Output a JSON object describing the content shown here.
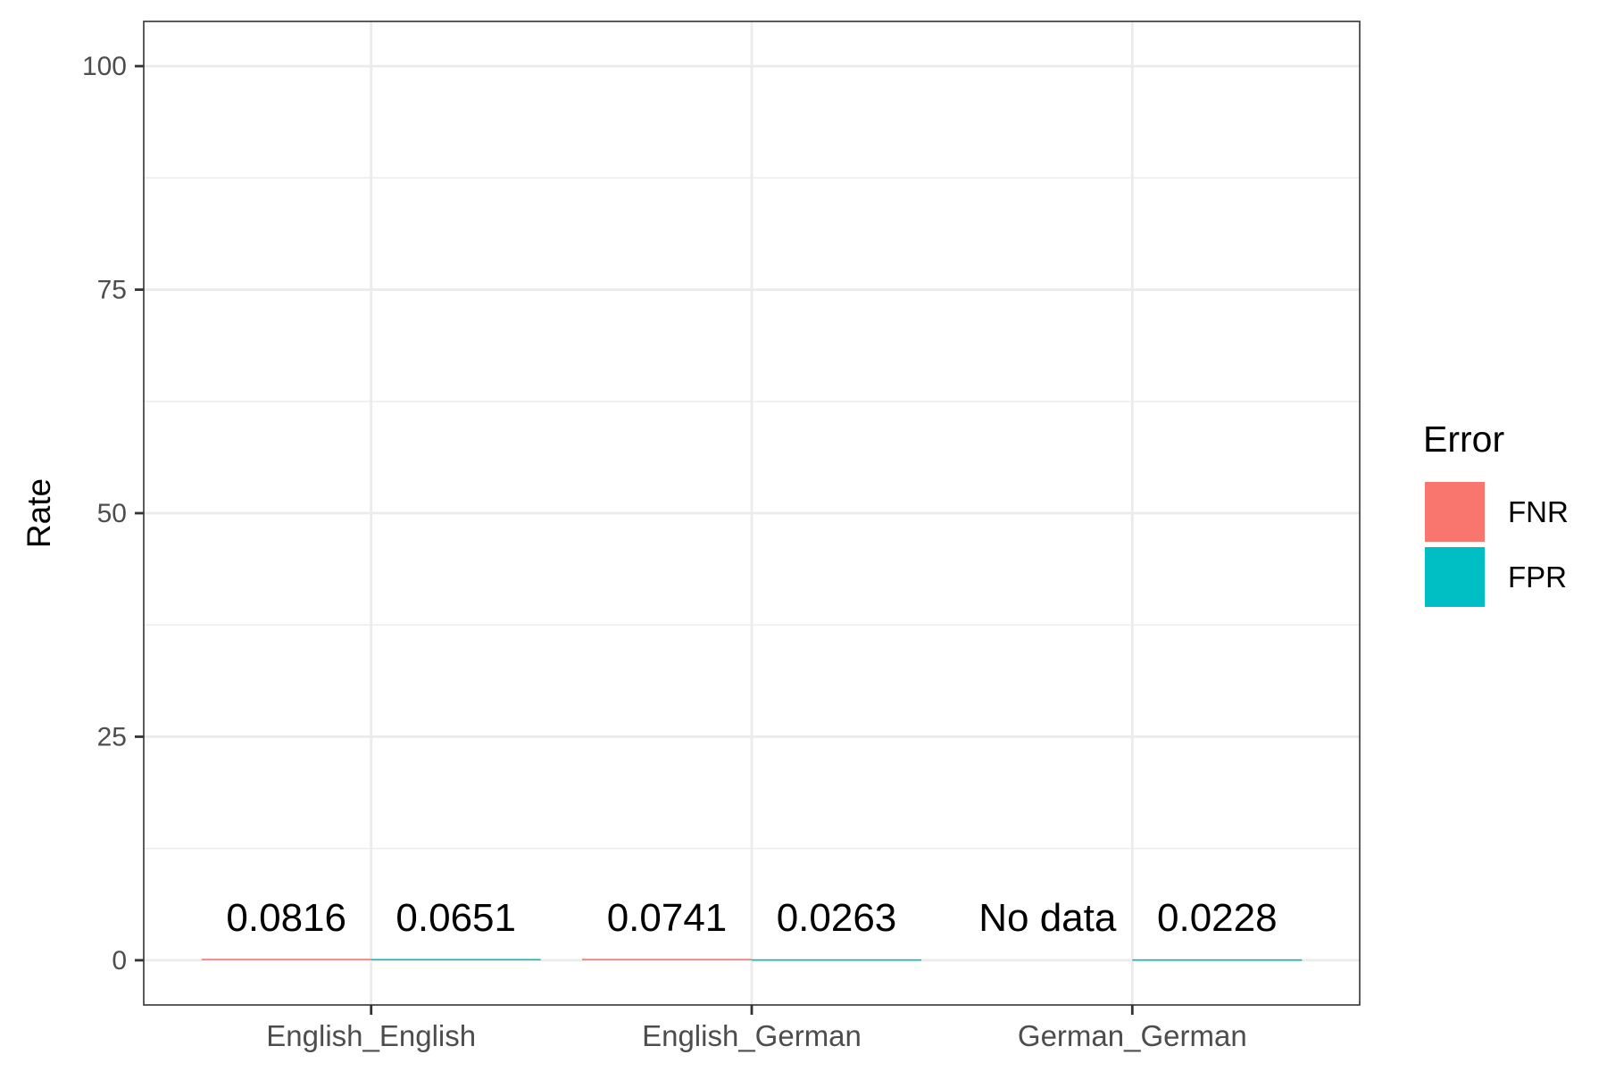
{
  "chart_data": {
    "type": "bar",
    "categories": [
      "English_English",
      "English_German",
      "German_German"
    ],
    "series": [
      {
        "name": "FNR",
        "color": "#F8766D",
        "values": [
          0.0816,
          0.0741,
          null
        ],
        "labels": [
          "0.0816",
          "0.0741",
          "No data"
        ]
      },
      {
        "name": "FPR",
        "color": "#00BFC4",
        "values": [
          0.0651,
          0.0263,
          0.0228
        ],
        "labels": [
          "0.0651",
          "0.0263",
          "0.0228"
        ]
      }
    ],
    "title": "",
    "xlabel": "",
    "ylabel": "Rate",
    "ylim": [
      -5,
      105
    ],
    "yticks": [
      0,
      25,
      50,
      75,
      100
    ],
    "grid": true,
    "legend": {
      "title": "Error",
      "position": "right"
    }
  }
}
